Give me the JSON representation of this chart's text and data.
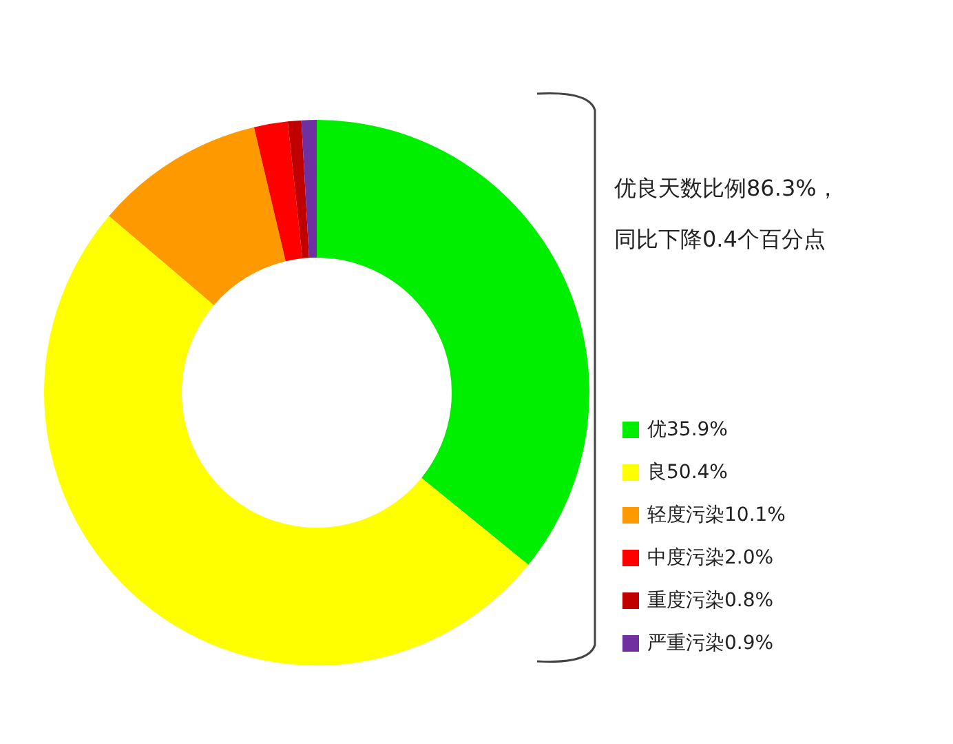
{
  "chart_data": {
    "type": "donut",
    "categories": [
      "优",
      "良",
      "轻度污染",
      "中度污染",
      "重度污染",
      "严重污染"
    ],
    "values": [
      35.9,
      50.4,
      10.1,
      2.0,
      0.8,
      0.9
    ],
    "value_labels": [
      "35.9%",
      "50.4%",
      "10.1%",
      "2.0%",
      "0.8%",
      "0.9%"
    ],
    "colors": [
      "#00ee00",
      "#ffff00",
      "#ff9900",
      "#ff0000",
      "#c00000",
      "#7030a0"
    ],
    "annotations": [
      "优良天数比例86.3%，",
      "同比下降0.4个百分点"
    ],
    "legend": "right"
  }
}
